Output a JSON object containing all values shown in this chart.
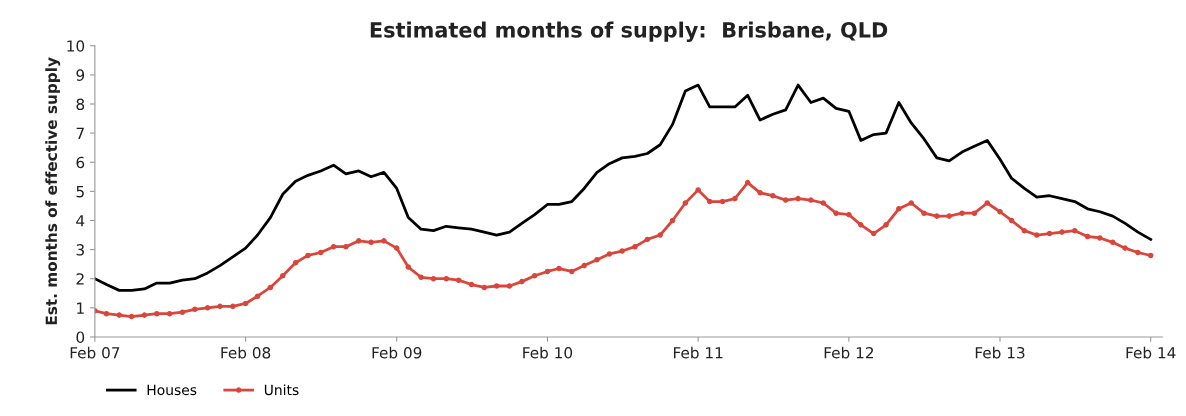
{
  "chart_data": {
    "type": "line",
    "title": "Estimated months of supply:  Brisbane, QLD",
    "ylabel": "Est. months of effective supply",
    "x": [
      "2007-02",
      "2007-03",
      "2007-04",
      "2007-05",
      "2007-06",
      "2007-07",
      "2007-08",
      "2007-09",
      "2007-10",
      "2007-11",
      "2007-12",
      "2008-01",
      "2008-02",
      "2008-03",
      "2008-04",
      "2008-05",
      "2008-06",
      "2008-07",
      "2008-08",
      "2008-09",
      "2008-10",
      "2008-11",
      "2008-12",
      "2009-01",
      "2009-02",
      "2009-03",
      "2009-04",
      "2009-05",
      "2009-06",
      "2009-07",
      "2009-08",
      "2009-09",
      "2009-10",
      "2009-11",
      "2009-12",
      "2010-01",
      "2010-02",
      "2010-03",
      "2010-04",
      "2010-05",
      "2010-06",
      "2010-07",
      "2010-08",
      "2010-09",
      "2010-10",
      "2010-11",
      "2010-12",
      "2011-01",
      "2011-02",
      "2011-03",
      "2011-04",
      "2011-05",
      "2011-06",
      "2011-07",
      "2011-08",
      "2011-09",
      "2011-10",
      "2011-11",
      "2011-12",
      "2012-01",
      "2012-02",
      "2012-03",
      "2012-04",
      "2012-05",
      "2012-06",
      "2012-07",
      "2012-08",
      "2012-09",
      "2012-10",
      "2012-11",
      "2012-12",
      "2013-01",
      "2013-02",
      "2013-03",
      "2013-04",
      "2013-05",
      "2013-06",
      "2013-07",
      "2013-08",
      "2013-09",
      "2013-10",
      "2013-11",
      "2013-12",
      "2014-01",
      "2014-02"
    ],
    "series": [
      {
        "name": "Houses",
        "color": "#000000",
        "marker": "none",
        "values": [
          2.0,
          1.8,
          1.6,
          1.6,
          1.65,
          1.85,
          1.85,
          1.95,
          2.0,
          2.2,
          2.45,
          2.75,
          3.05,
          3.5,
          4.1,
          4.9,
          5.35,
          5.55,
          5.7,
          5.9,
          5.6,
          5.7,
          5.5,
          5.65,
          5.1,
          4.1,
          3.7,
          3.65,
          3.8,
          3.75,
          3.7,
          3.6,
          3.5,
          3.6,
          3.9,
          4.2,
          4.55,
          4.55,
          4.65,
          5.1,
          5.65,
          5.95,
          6.15,
          6.2,
          6.3,
          6.6,
          7.3,
          8.45,
          8.65,
          7.9,
          7.9,
          7.9,
          8.3,
          7.45,
          7.65,
          7.8,
          8.65,
          8.05,
          8.2,
          7.85,
          7.75,
          6.75,
          6.95,
          7.0,
          8.05,
          7.35,
          6.8,
          6.15,
          6.05,
          6.35,
          6.55,
          6.75,
          6.1,
          5.45,
          5.1,
          4.8,
          4.85,
          4.75,
          4.65,
          4.4,
          4.3,
          4.15,
          3.9,
          3.6,
          3.35
        ]
      },
      {
        "name": "Units",
        "color": "#d9463b",
        "marker": "circle",
        "values": [
          0.9,
          0.8,
          0.75,
          0.7,
          0.75,
          0.8,
          0.8,
          0.85,
          0.95,
          1.0,
          1.05,
          1.05,
          1.15,
          1.4,
          1.7,
          2.1,
          2.55,
          2.8,
          2.9,
          3.1,
          3.1,
          3.3,
          3.25,
          3.3,
          3.05,
          2.4,
          2.05,
          2.0,
          2.0,
          1.95,
          1.8,
          1.7,
          1.75,
          1.75,
          1.9,
          2.1,
          2.25,
          2.35,
          2.25,
          2.45,
          2.65,
          2.85,
          2.95,
          3.1,
          3.35,
          3.5,
          4.0,
          4.6,
          5.05,
          4.65,
          4.65,
          4.75,
          5.3,
          4.95,
          4.85,
          4.7,
          4.75,
          4.7,
          4.6,
          4.25,
          4.2,
          3.85,
          3.55,
          3.85,
          4.4,
          4.6,
          4.25,
          4.15,
          4.15,
          4.25,
          4.25,
          4.6,
          4.3,
          4.0,
          3.65,
          3.5,
          3.55,
          3.6,
          3.65,
          3.45,
          3.4,
          3.25,
          3.05,
          2.9,
          2.8
        ]
      }
    ],
    "xlim": [
      "2007-02",
      "2014-03"
    ],
    "xticks": [
      {
        "value": "2007-02",
        "label": "Feb 07"
      },
      {
        "value": "2008-02",
        "label": "Feb 08"
      },
      {
        "value": "2009-02",
        "label": "Feb 09"
      },
      {
        "value": "2010-02",
        "label": "Feb 10"
      },
      {
        "value": "2011-02",
        "label": "Feb 11"
      },
      {
        "value": "2012-02",
        "label": "Feb 12"
      },
      {
        "value": "2013-02",
        "label": "Feb 13"
      },
      {
        "value": "2014-02",
        "label": "Feb 14"
      }
    ],
    "ylim": [
      0,
      10
    ],
    "yticks": [
      0,
      1,
      2,
      3,
      4,
      5,
      6,
      7,
      8,
      9,
      10
    ],
    "legend": "bottom left",
    "grid": false,
    "line_style": "solid"
  }
}
